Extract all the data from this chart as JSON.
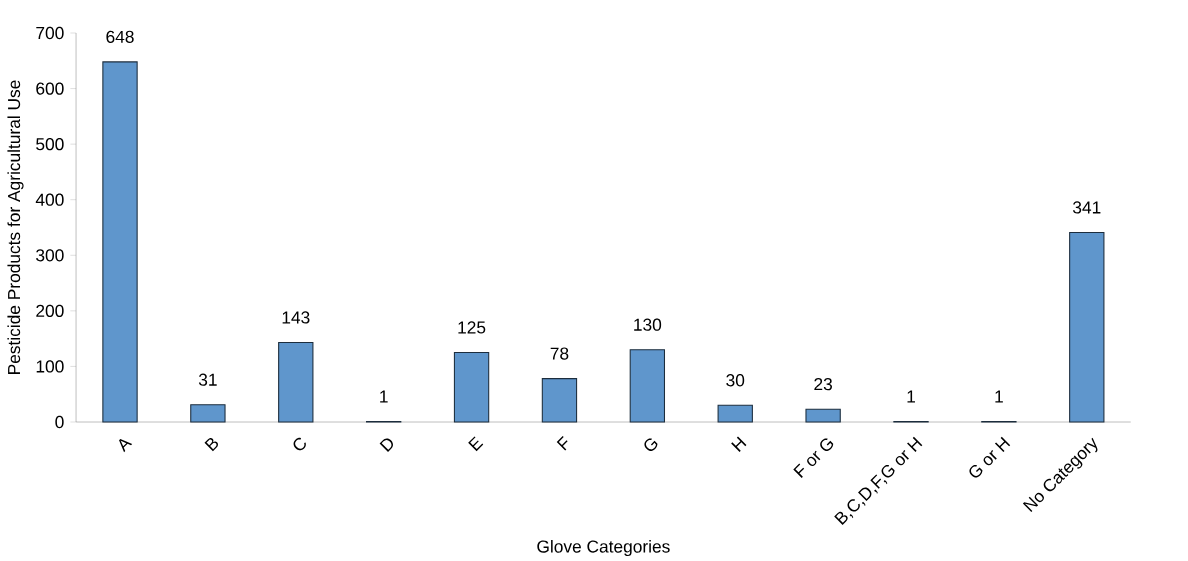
{
  "chart_data": {
    "type": "bar",
    "xlabel": "Glove Categories",
    "ylabel": "Pesticide Products for Agricultural Use",
    "categories": [
      "A",
      "B",
      "C",
      "D",
      "E",
      "F",
      "G",
      "H",
      "F or G",
      "B,C,D,F,G or H",
      "G or H",
      "No Category"
    ],
    "values": [
      648,
      31,
      143,
      1,
      125,
      78,
      130,
      30,
      23,
      1,
      1,
      341
    ],
    "color": "#5f96cc",
    "ylim": [
      0,
      700
    ],
    "yticks": [
      0,
      100,
      200,
      300,
      400,
      500,
      600,
      700
    ],
    "data_labels": true
  }
}
